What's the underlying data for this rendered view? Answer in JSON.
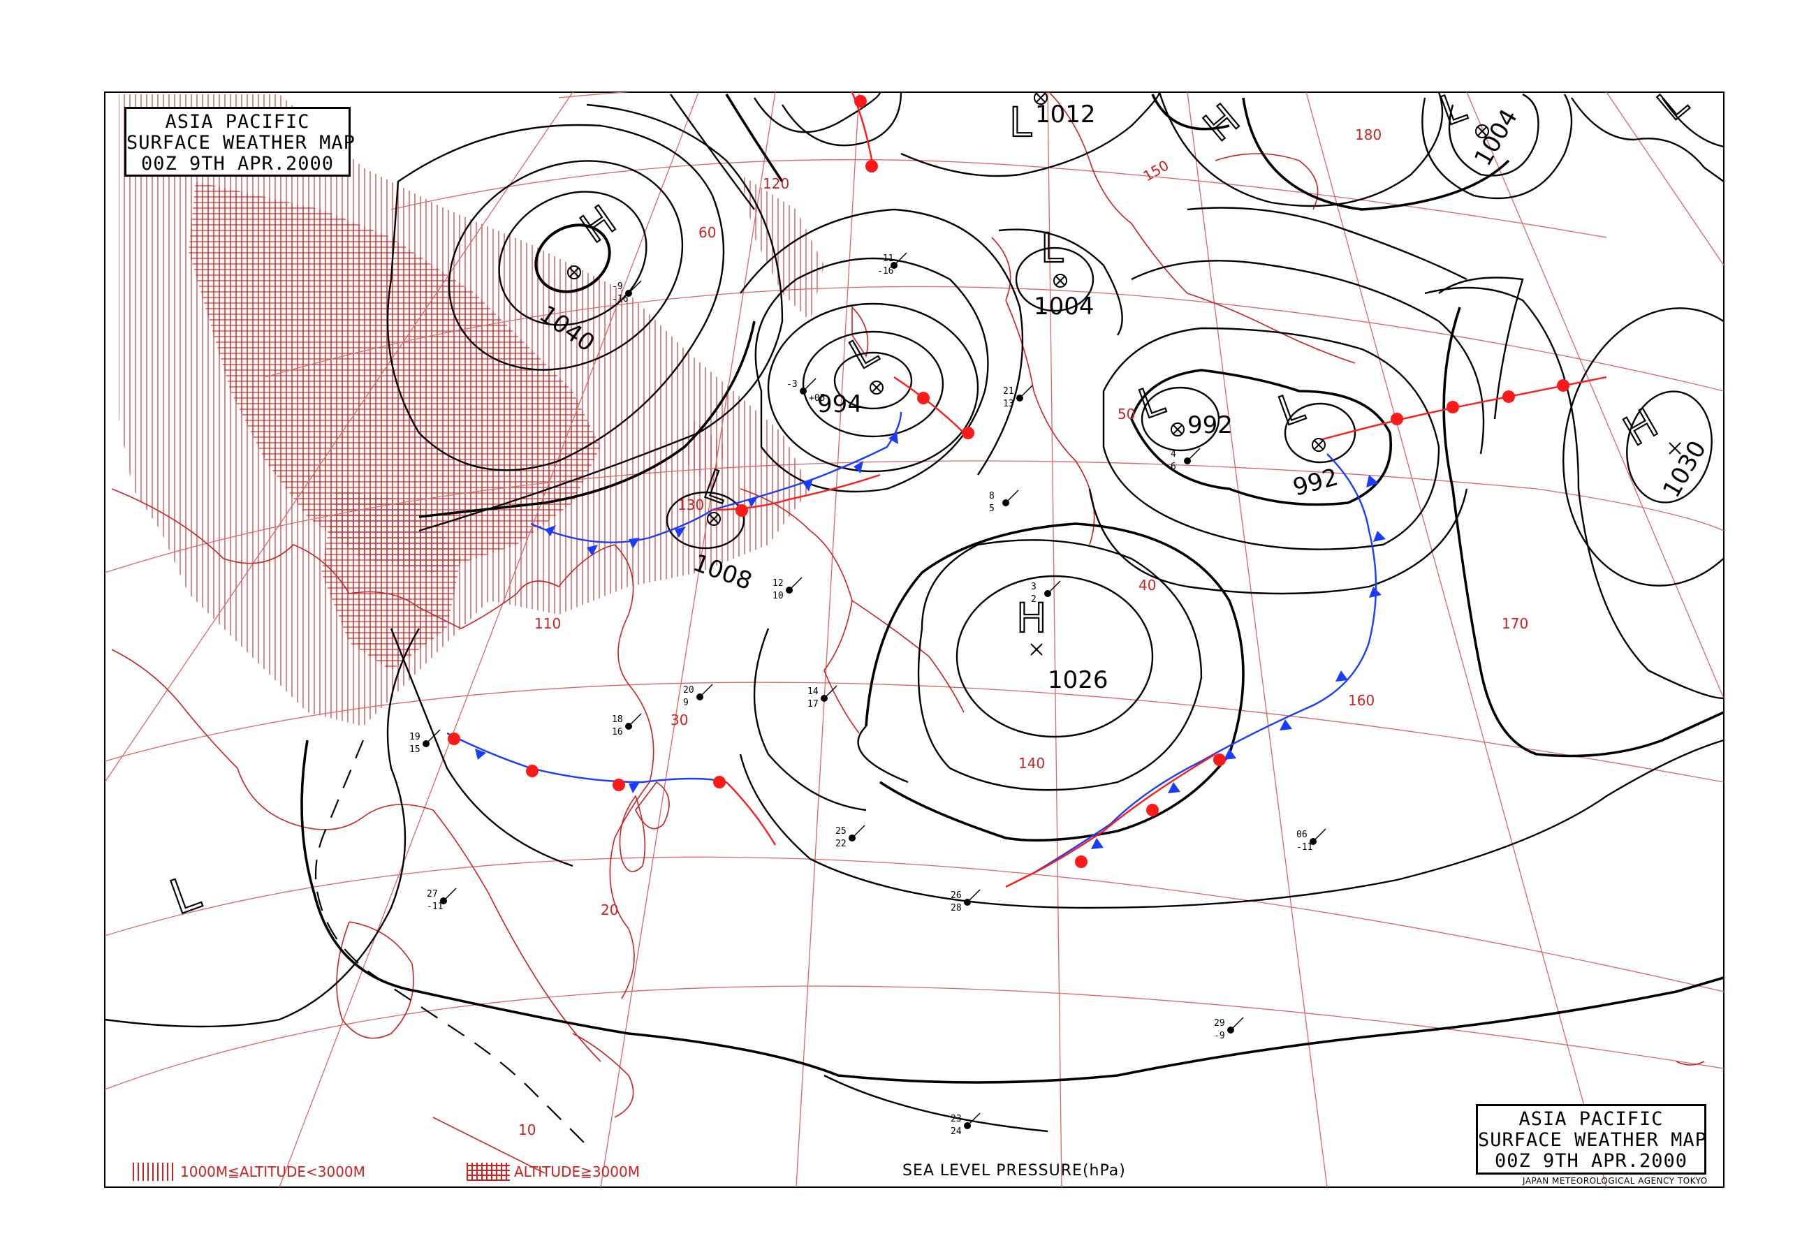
{
  "title": {
    "line1": "ASIA PACIFIC",
    "line2": "SURFACE WEATHER MAP",
    "line3": "00Z  9TH APR.2000"
  },
  "agency": "JAPAN METEOROLOGICAL AGENCY TOKYO",
  "legend": {
    "low_altitude": "1000M≦ALTITUDE<3000M",
    "high_altitude": "ALTITUDE≧3000M",
    "pressure_label": "SEA LEVEL PRESSURE(hPa)"
  },
  "colors": {
    "isobar": "#000000",
    "graticule": "#d66",
    "coast": "#cc2222",
    "cold_front": "#1a3cff",
    "warm_front": "#ff1a1a",
    "terrain_hatch": "#cc2222"
  },
  "pressure_systems": [
    {
      "type": "H",
      "value": "1040"
    },
    {
      "type": "L",
      "value": "994"
    },
    {
      "type": "L",
      "value": "1008"
    },
    {
      "type": "L",
      "value": "1012"
    },
    {
      "type": "L",
      "value": "1004"
    },
    {
      "type": "L",
      "value": "1004"
    },
    {
      "type": "L",
      "value": "992"
    },
    {
      "type": "L",
      "value": "992"
    },
    {
      "type": "H",
      "value": "1026"
    },
    {
      "type": "H",
      "value": "1030"
    },
    {
      "type": "L",
      "value": ""
    },
    {
      "type": "H",
      "value": ""
    },
    {
      "type": "L",
      "value": ""
    }
  ],
  "graticule_labels": {
    "longitudes": [
      "110",
      "120",
      "130",
      "140",
      "150",
      "160",
      "170",
      "180"
    ],
    "latitudes": [
      "10",
      "20",
      "30",
      "40",
      "50",
      "60"
    ]
  },
  "station_samples": [
    "19",
    "15",
    "-3",
    "+05",
    "21",
    "13",
    "18",
    "16",
    "06",
    "25",
    "22",
    "27",
    "29",
    "26",
    "28",
    "23",
    "24",
    "-11",
    "-9",
    "-16",
    "12",
    "10",
    "8",
    "5",
    "4",
    "6",
    "20",
    "9",
    "14",
    "17",
    "3",
    "2"
  ]
}
